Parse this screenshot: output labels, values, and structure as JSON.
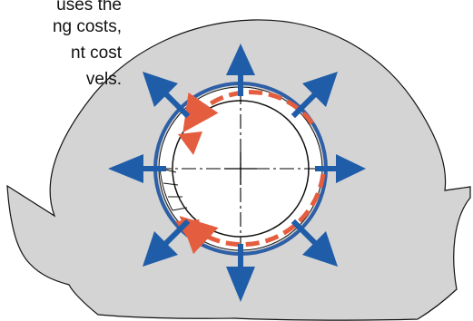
{
  "text": {
    "line1": "uses the",
    "line2": "ng costs,",
    "line3": "nt cost",
    "line4": "vels."
  },
  "colors": {
    "background": "#ffffff",
    "body_fill": "#d4d4d4",
    "body_stroke": "#111111",
    "arrow_blue": "#1f5da9",
    "ring_blue": "#2f5fa6",
    "flow_orange": "#e45d3f",
    "centerline": "#000000"
  },
  "icons": {
    "pressure_arrow": "outward-radial-arrow",
    "flow_arrow": "curved-dashed-arrow"
  }
}
